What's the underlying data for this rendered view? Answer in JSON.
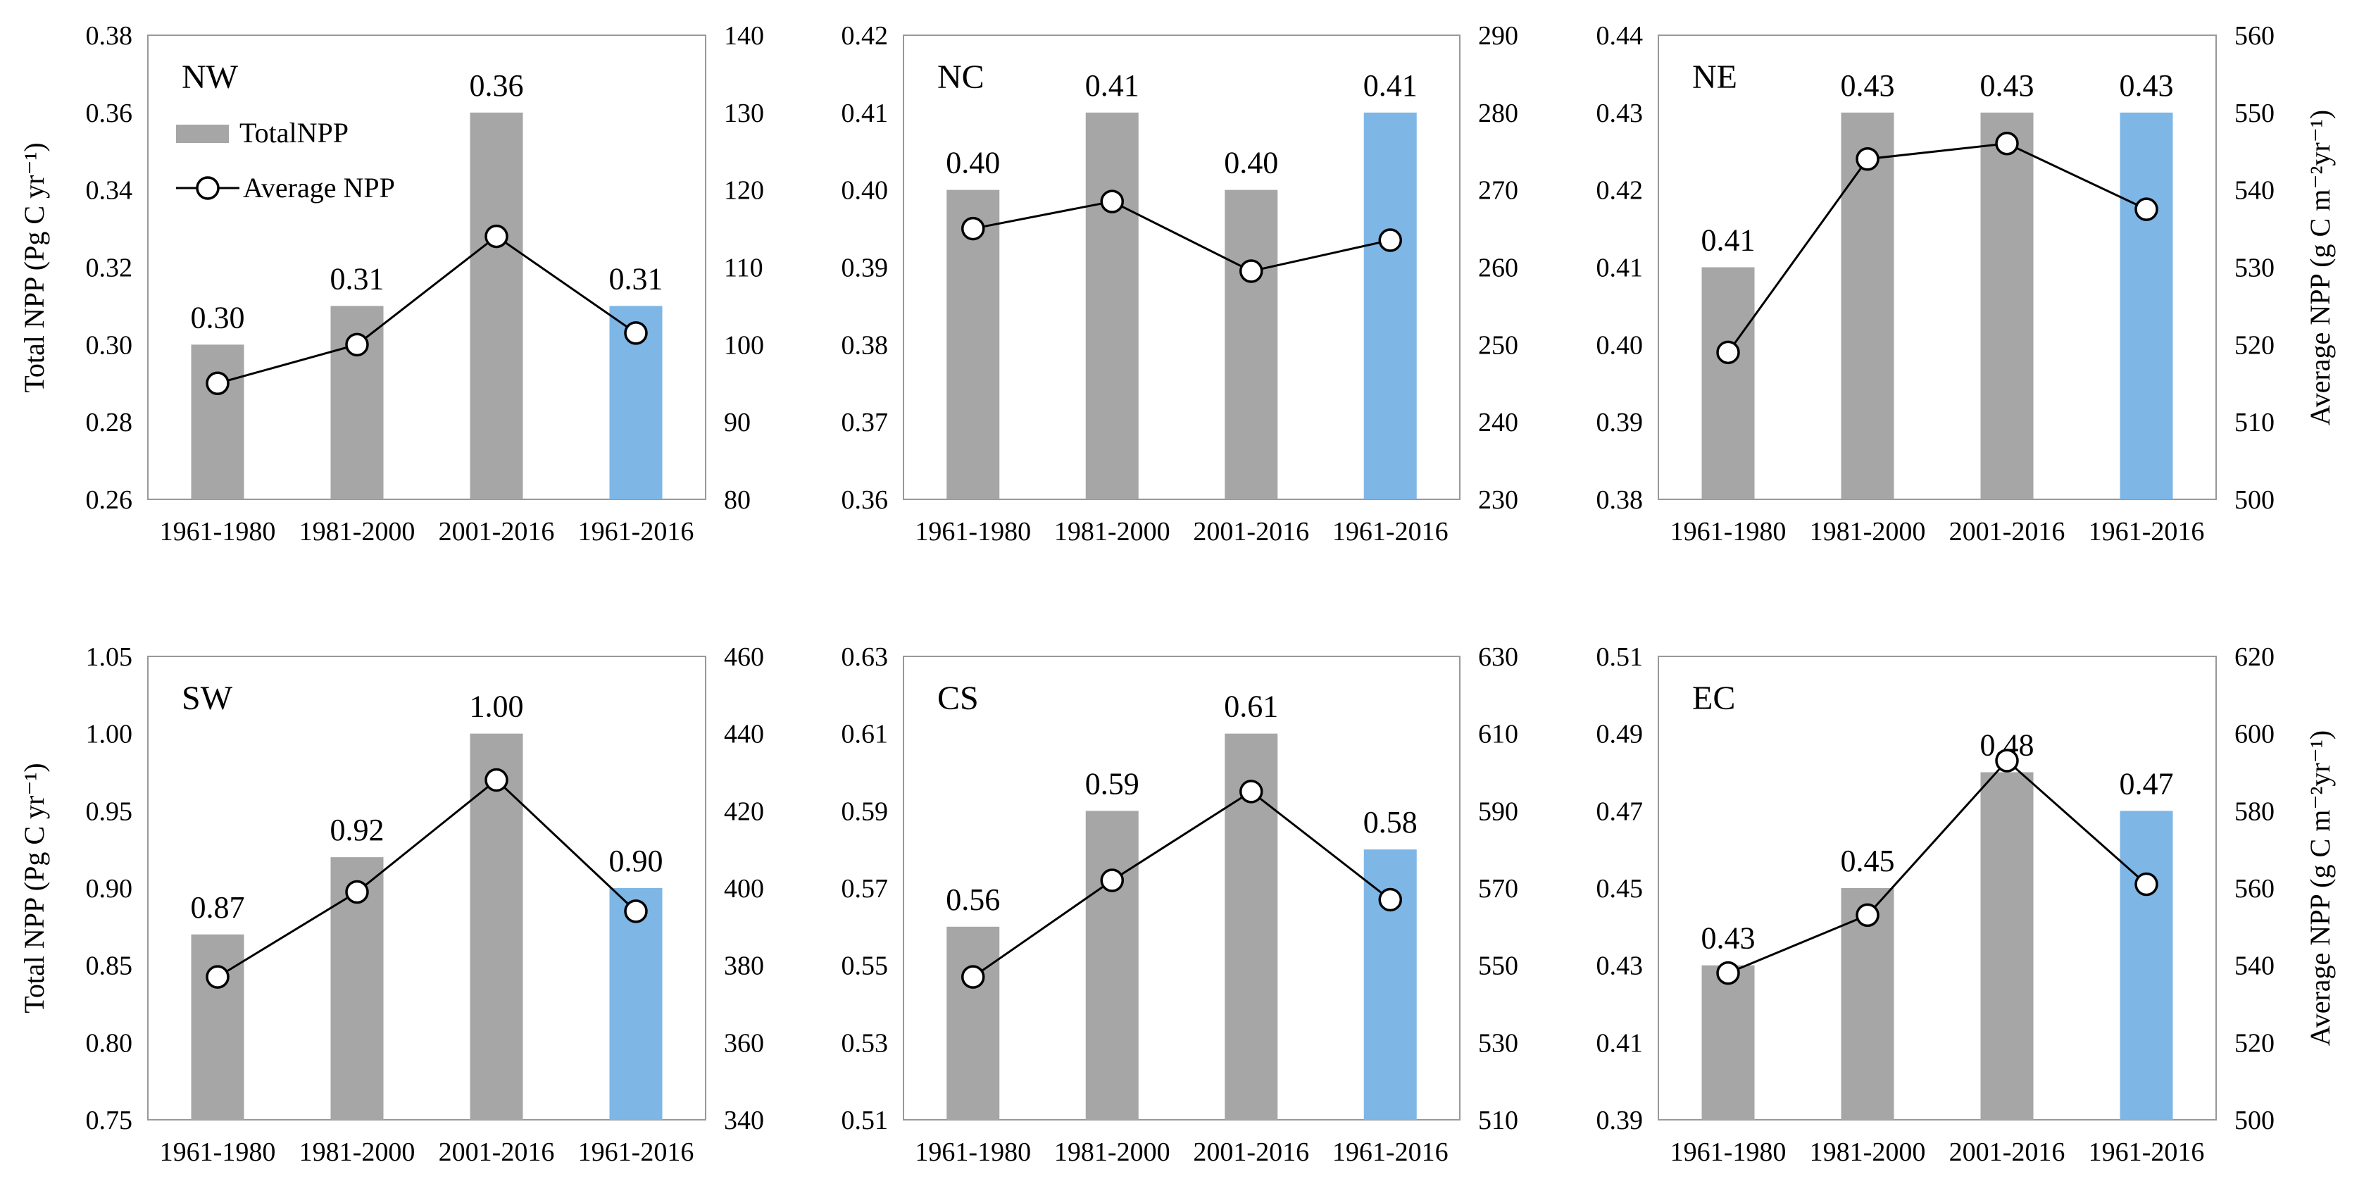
{
  "colors": {
    "bar_gray": "#a6a6a6",
    "bar_blue": "#7eb6e6",
    "line": "#000000",
    "frame": "#999999"
  },
  "legend": {
    "bar_label": "TotalNPP",
    "line_label": "Average NPP"
  },
  "axis_titles": {
    "left_top": "Total NPP (Pg C yr⁻¹)",
    "left_bottom": "Total NPP (Pg C yr⁻¹)",
    "right_top": "Average NPP (g C m⁻²yr⁻¹)",
    "right_bottom": "Average NPP (g C m⁻²yr⁻¹)"
  },
  "chart_data": [
    {
      "type": "bar",
      "region": "NW",
      "categories": [
        "1961-1980",
        "1981-2000",
        "2001-2016",
        "1961-2016"
      ],
      "series": [
        {
          "name": "TotalNPP",
          "axis": "left",
          "values": [
            0.3,
            0.31,
            0.36,
            0.31
          ],
          "labels": [
            "0.30",
            "0.31",
            "0.36",
            "0.31"
          ]
        },
        {
          "name": "Average NPP",
          "axis": "right",
          "values": [
            95,
            100,
            114,
            101.5
          ]
        }
      ],
      "ylim_left": [
        0.26,
        0.38
      ],
      "yticks_left": [
        "0.26",
        "0.28",
        "0.30",
        "0.32",
        "0.34",
        "0.36",
        "0.38"
      ],
      "ylim_right": [
        80,
        140
      ],
      "yticks_right": [
        "80",
        "90",
        "100",
        "110",
        "120",
        "130",
        "140"
      ],
      "legend_position": "top-left"
    },
    {
      "type": "bar",
      "region": "NC",
      "categories": [
        "1961-1980",
        "1981-2000",
        "2001-2016",
        "1961-2016"
      ],
      "series": [
        {
          "name": "TotalNPP",
          "axis": "left",
          "values": [
            0.4,
            0.41,
            0.4,
            0.41
          ],
          "labels": [
            "0.40",
            "0.41",
            "0.40",
            "0.41"
          ]
        },
        {
          "name": "Average NPP",
          "axis": "right",
          "values": [
            265,
            268.5,
            259.5,
            263.5
          ]
        }
      ],
      "ylim_left": [
        0.36,
        0.42
      ],
      "yticks_left": [
        "0.36",
        "0.37",
        "0.38",
        "0.39",
        "0.40",
        "0.41",
        "0.42"
      ],
      "ylim_right": [
        230,
        290
      ],
      "yticks_right": [
        "230",
        "240",
        "250",
        "260",
        "270",
        "280",
        "290"
      ]
    },
    {
      "type": "bar",
      "region": "NE",
      "categories": [
        "1961-1980",
        "1981-2000",
        "2001-2016",
        "1961-2016"
      ],
      "series": [
        {
          "name": "TotalNPP",
          "axis": "left",
          "values": [
            0.41,
            0.43,
            0.43,
            0.43
          ],
          "labels": [
            "0.41",
            "0.43",
            "0.43",
            "0.43"
          ]
        },
        {
          "name": "Average NPP",
          "axis": "right",
          "values": [
            519,
            544,
            546,
            537.5
          ]
        }
      ],
      "ylim_left": [
        0.38,
        0.44
      ],
      "yticks_left": [
        "0.38",
        "0.39",
        "0.40",
        "0.41",
        "0.42",
        "0.43",
        "0.44"
      ],
      "ylim_right": [
        500,
        560
      ],
      "yticks_right": [
        "500",
        "510",
        "520",
        "530",
        "540",
        "550",
        "560"
      ]
    },
    {
      "type": "bar",
      "region": "SW",
      "categories": [
        "1961-1980",
        "1981-2000",
        "2001-2016",
        "1961-2016"
      ],
      "series": [
        {
          "name": "TotalNPP",
          "axis": "left",
          "values": [
            0.87,
            0.92,
            1.0,
            0.9
          ],
          "labels": [
            "0.87",
            "0.92",
            "1.00",
            "0.90"
          ]
        },
        {
          "name": "Average NPP",
          "axis": "right",
          "values": [
            377,
            399,
            428,
            394
          ]
        }
      ],
      "ylim_left": [
        0.75,
        1.05
      ],
      "yticks_left": [
        "0.75",
        "0.80",
        "0.85",
        "0.90",
        "0.95",
        "1.00",
        "1.05"
      ],
      "ylim_right": [
        340,
        460
      ],
      "yticks_right": [
        "340",
        "360",
        "380",
        "400",
        "420",
        "440",
        "460"
      ]
    },
    {
      "type": "bar",
      "region": "CS",
      "categories": [
        "1961-1980",
        "1981-2000",
        "2001-2016",
        "1961-2016"
      ],
      "series": [
        {
          "name": "TotalNPP",
          "axis": "left",
          "values": [
            0.56,
            0.59,
            0.61,
            0.58
          ],
          "labels": [
            "0.56",
            "0.59",
            "0.61",
            "0.58"
          ]
        },
        {
          "name": "Average NPP",
          "axis": "right",
          "values": [
            547,
            572,
            595,
            567
          ]
        }
      ],
      "ylim_left": [
        0.51,
        0.63
      ],
      "yticks_left": [
        "0.51",
        "0.53",
        "0.55",
        "0.57",
        "0.59",
        "0.61",
        "0.63"
      ],
      "ylim_right": [
        510,
        630
      ],
      "yticks_right": [
        "510",
        "530",
        "550",
        "570",
        "590",
        "610",
        "630"
      ]
    },
    {
      "type": "bar",
      "region": "EC",
      "categories": [
        "1961-1980",
        "1981-2000",
        "2001-2016",
        "1961-2016"
      ],
      "series": [
        {
          "name": "TotalNPP",
          "axis": "left",
          "values": [
            0.43,
            0.45,
            0.48,
            0.47
          ],
          "labels": [
            "0.43",
            "0.45",
            "0.48",
            "0.47"
          ]
        },
        {
          "name": "Average NPP",
          "axis": "right",
          "values": [
            538,
            553,
            593,
            561
          ]
        }
      ],
      "ylim_left": [
        0.39,
        0.51
      ],
      "yticks_left": [
        "0.39",
        "0.41",
        "0.43",
        "0.45",
        "0.47",
        "0.49",
        "0.51"
      ],
      "ylim_right": [
        500,
        620
      ],
      "yticks_right": [
        "500",
        "520",
        "540",
        "560",
        "580",
        "600",
        "620"
      ]
    }
  ]
}
